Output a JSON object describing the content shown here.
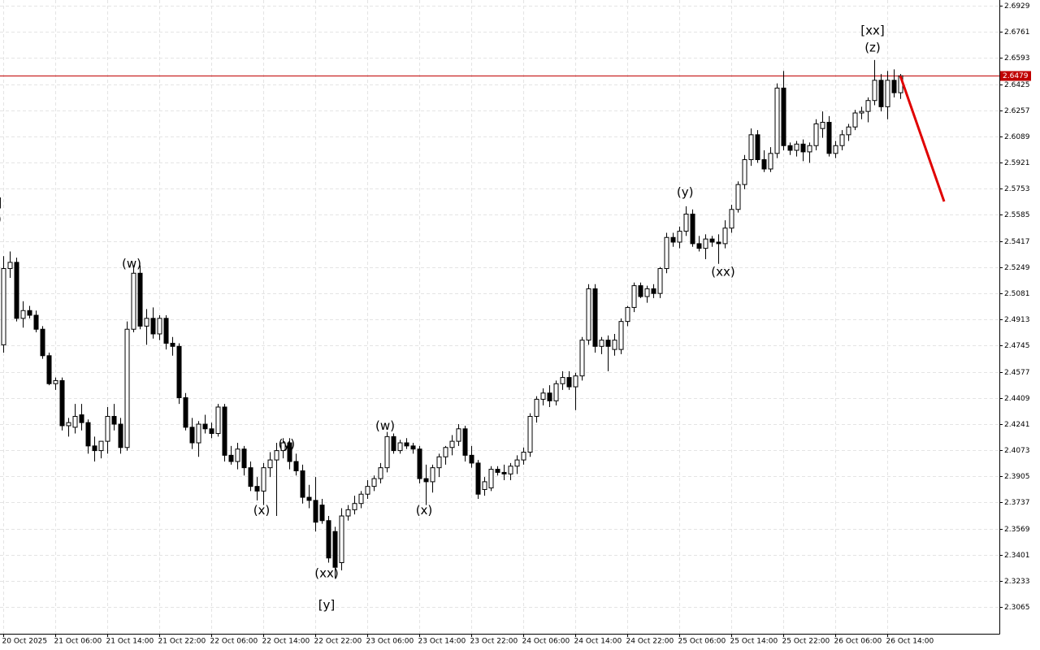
{
  "chart_data": {
    "type": "candlestick",
    "xlim": [
      -0.5,
      153.25
    ],
    "ylim": [
      2.2893,
      2.6966
    ],
    "yticks": [
      2.3065,
      2.3233,
      2.3401,
      2.3569,
      2.3737,
      2.3905,
      2.4073,
      2.4241,
      2.4409,
      2.4577,
      2.4745,
      2.4913,
      2.5081,
      2.5249,
      2.5417,
      2.5585,
      2.5753,
      2.5921,
      2.6089,
      2.6257,
      2.6425,
      2.6593,
      2.6761,
      2.6929
    ],
    "xticks": [
      {
        "value": 0,
        "label": "20 Oct 2025"
      },
      {
        "value": 8,
        "label": "21 Oct 06:00"
      },
      {
        "value": 16,
        "label": "21 Oct 14:00"
      },
      {
        "value": 24,
        "label": "21 Oct 22:00"
      },
      {
        "value": 32,
        "label": "22 Oct 06:00"
      },
      {
        "value": 40,
        "label": "22 Oct 14:00"
      },
      {
        "value": 48,
        "label": "22 Oct 22:00"
      },
      {
        "value": 56,
        "label": "23 Oct 06:00"
      },
      {
        "value": 64,
        "label": "23 Oct 14:00"
      },
      {
        "value": 72,
        "label": "23 Oct 22:00"
      },
      {
        "value": 80,
        "label": "24 Oct 06:00"
      },
      {
        "value": 88,
        "label": "24 Oct 14:00"
      },
      {
        "value": 96,
        "label": "24 Oct 22:00"
      },
      {
        "value": 104,
        "label": "25 Oct 06:00"
      },
      {
        "value": 112,
        "label": "25 Oct 14:00"
      },
      {
        "value": 120,
        "label": "25 Oct 22:00"
      },
      {
        "value": 128,
        "label": "26 Oct 06:00"
      },
      {
        "value": 136,
        "label": "26 Oct 14:00"
      }
    ],
    "grid": true,
    "up_color": "#ffffff",
    "down_color": "#000000",
    "current_price": 2.6479,
    "price_line_color": "#c00000",
    "forecast": {
      "color": "#e00000",
      "x": [
        138,
        144.75
      ],
      "y": [
        2.6479,
        2.5671
      ]
    },
    "annotations": [
      {
        "text": "[x]",
        "x": -1.5,
        "y": 2.5661,
        "color": "#33cc33"
      },
      {
        "text": "(z)",
        "x": -1.5,
        "y": 2.5557,
        "color": "#2222cc"
      },
      {
        "text": "(w)",
        "x": 19.75,
        "y": 2.527,
        "color": "#2222cc"
      },
      {
        "text": "(x)",
        "x": 39.75,
        "y": 2.3683,
        "color": "#2222cc"
      },
      {
        "text": "(y)",
        "x": 43.6,
        "y": 2.411,
        "color": "#2222cc"
      },
      {
        "text": "(xx)",
        "x": 49.75,
        "y": 2.328,
        "color": "#2222cc"
      },
      {
        "text": "[y]",
        "x": 49.75,
        "y": 2.3077,
        "color": "#33cc33"
      },
      {
        "text": "(w)",
        "x": 58.75,
        "y": 2.4226,
        "color": "#2222cc"
      },
      {
        "text": "(x)",
        "x": 64.75,
        "y": 2.3683,
        "color": "#2222cc"
      },
      {
        "text": "(y)",
        "x": 104.9,
        "y": 2.5729,
        "color": "#2222cc"
      },
      {
        "text": "(xx)",
        "x": 110.75,
        "y": 2.5217,
        "color": "#2222cc"
      },
      {
        "text": "(z)",
        "x": 133.75,
        "y": 2.6658,
        "color": "#2222cc"
      },
      {
        "text": "[xx]",
        "x": 133.75,
        "y": 2.6767,
        "color": "#33cc33"
      }
    ],
    "ohlc": [
      [
        2.475,
        2.532,
        2.47,
        2.524
      ],
      [
        2.524,
        2.535,
        2.518,
        2.528
      ],
      [
        2.528,
        2.531,
        2.49,
        2.492
      ],
      [
        2.492,
        2.503,
        2.486,
        2.497
      ],
      [
        2.497,
        2.5,
        2.492,
        2.494
      ],
      [
        2.494,
        2.497,
        2.483,
        2.485
      ],
      [
        2.485,
        2.487,
        2.466,
        2.468
      ],
      [
        2.468,
        2.47,
        2.449,
        2.45
      ],
      [
        2.45,
        2.454,
        2.446,
        2.452
      ],
      [
        2.452,
        2.454,
        2.42,
        2.423
      ],
      [
        2.423,
        2.428,
        2.416,
        2.425
      ],
      [
        2.422,
        2.437,
        2.418,
        2.429
      ],
      [
        2.43,
        2.437,
        2.42,
        2.425
      ],
      [
        2.425,
        2.427,
        2.405,
        2.41
      ],
      [
        2.41,
        2.416,
        2.4,
        2.407
      ],
      [
        2.407,
        2.413,
        2.402,
        2.413
      ],
      [
        2.413,
        2.435,
        2.405,
        2.429
      ],
      [
        2.429,
        2.437,
        2.42,
        2.424
      ],
      [
        2.424,
        2.428,
        2.405,
        2.409
      ],
      [
        2.409,
        2.49,
        2.407,
        2.485
      ],
      [
        2.485,
        2.526,
        2.483,
        2.521
      ],
      [
        2.521,
        2.526,
        2.485,
        2.487
      ],
      [
        2.487,
        2.498,
        2.475,
        2.492
      ],
      [
        2.492,
        2.499,
        2.479,
        2.482
      ],
      [
        2.482,
        2.494,
        2.478,
        2.492
      ],
      [
        2.492,
        2.494,
        2.472,
        2.476
      ],
      [
        2.476,
        2.48,
        2.468,
        2.474
      ],
      [
        2.474,
        2.476,
        2.437,
        2.441
      ],
      [
        2.441,
        2.444,
        2.42,
        2.422
      ],
      [
        2.422,
        2.428,
        2.408,
        2.412
      ],
      [
        2.412,
        2.426,
        2.403,
        2.424
      ],
      [
        2.424,
        2.43,
        2.418,
        2.421
      ],
      [
        2.421,
        2.425,
        2.415,
        2.418
      ],
      [
        2.418,
        2.437,
        2.416,
        2.435
      ],
      [
        2.435,
        2.437,
        2.4,
        2.404
      ],
      [
        2.404,
        2.41,
        2.398,
        2.4
      ],
      [
        2.4,
        2.412,
        2.395,
        2.408
      ],
      [
        2.408,
        2.41,
        2.391,
        2.396
      ],
      [
        2.396,
        2.4,
        2.381,
        2.384
      ],
      [
        2.384,
        2.39,
        2.375,
        2.381
      ],
      [
        2.381,
        2.399,
        2.372,
        2.396
      ],
      [
        2.396,
        2.406,
        2.39,
        2.401
      ],
      [
        2.401,
        2.412,
        2.365,
        2.407
      ],
      [
        2.407,
        2.415,
        2.402,
        2.412
      ],
      [
        2.412,
        2.415,
        2.395,
        2.4
      ],
      [
        2.4,
        2.405,
        2.391,
        2.394
      ],
      [
        2.394,
        2.398,
        2.373,
        2.377
      ],
      [
        2.377,
        2.385,
        2.37,
        2.375
      ],
      [
        2.375,
        2.39,
        2.355,
        2.361
      ],
      [
        2.372,
        2.376,
        2.36,
        2.362
      ],
      [
        2.362,
        2.365,
        2.335,
        2.338
      ],
      [
        2.355,
        2.358,
        2.325,
        2.332
      ],
      [
        2.335,
        2.37,
        2.33,
        2.365
      ],
      [
        2.365,
        2.372,
        2.362,
        2.369
      ],
      [
        2.369,
        2.378,
        2.366,
        2.373
      ],
      [
        2.373,
        2.381,
        2.37,
        2.379
      ],
      [
        2.379,
        2.388,
        2.376,
        2.384
      ],
      [
        2.384,
        2.391,
        2.381,
        2.389
      ],
      [
        2.389,
        2.399,
        2.386,
        2.396
      ],
      [
        2.396,
        2.419,
        2.393,
        2.416
      ],
      [
        2.416,
        2.418,
        2.405,
        2.407
      ],
      [
        2.407,
        2.414,
        2.405,
        2.412
      ],
      [
        2.412,
        2.415,
        2.408,
        2.41
      ],
      [
        2.41,
        2.412,
        2.405,
        2.408
      ],
      [
        2.408,
        2.41,
        2.386,
        2.389
      ],
      [
        2.389,
        2.398,
        2.372,
        2.387
      ],
      [
        2.387,
        2.398,
        2.38,
        2.396
      ],
      [
        2.396,
        2.405,
        2.39,
        2.403
      ],
      [
        2.403,
        2.41,
        2.398,
        2.409
      ],
      [
        2.409,
        2.417,
        2.404,
        2.413
      ],
      [
        2.413,
        2.424,
        2.41,
        2.421
      ],
      [
        2.421,
        2.423,
        2.4,
        2.404
      ],
      [
        2.404,
        2.41,
        2.396,
        2.399
      ],
      [
        2.399,
        2.401,
        2.376,
        2.379
      ],
      [
        2.382,
        2.39,
        2.378,
        2.387
      ],
      [
        2.383,
        2.397,
        2.381,
        2.395
      ],
      [
        2.395,
        2.397,
        2.391,
        2.393
      ],
      [
        2.393,
        2.398,
        2.388,
        2.392
      ],
      [
        2.392,
        2.399,
        2.388,
        2.397
      ],
      [
        2.397,
        2.404,
        2.392,
        2.401
      ],
      [
        2.401,
        2.409,
        2.398,
        2.406
      ],
      [
        2.406,
        2.431,
        2.403,
        2.429
      ],
      [
        2.429,
        2.442,
        2.425,
        2.44
      ],
      [
        2.44,
        2.447,
        2.436,
        2.444
      ],
      [
        2.444,
        2.449,
        2.435,
        2.439
      ],
      [
        2.439,
        2.452,
        2.436,
        2.45
      ],
      [
        2.45,
        2.458,
        2.446,
        2.454
      ],
      [
        2.454,
        2.458,
        2.446,
        2.448
      ],
      [
        2.448,
        2.457,
        2.433,
        2.455
      ],
      [
        2.455,
        2.48,
        2.452,
        2.478
      ],
      [
        2.478,
        2.514,
        2.475,
        2.511
      ],
      [
        2.511,
        2.514,
        2.47,
        2.474
      ],
      [
        2.474,
        2.48,
        2.469,
        2.478
      ],
      [
        2.478,
        2.481,
        2.458,
        2.474
      ],
      [
        2.472,
        2.482,
        2.468,
        2.478
      ],
      [
        2.472,
        2.492,
        2.469,
        2.49
      ],
      [
        2.49,
        2.5,
        2.487,
        2.499
      ],
      [
        2.499,
        2.515,
        2.496,
        2.513
      ],
      [
        2.513,
        2.515,
        2.505,
        2.506
      ],
      [
        2.506,
        2.513,
        2.502,
        2.511
      ],
      [
        2.511,
        2.514,
        2.505,
        2.508
      ],
      [
        2.508,
        2.525,
        2.505,
        2.524
      ],
      [
        2.524,
        2.547,
        2.521,
        2.544
      ],
      [
        2.544,
        2.547,
        2.538,
        2.541
      ],
      [
        2.541,
        2.551,
        2.537,
        2.548
      ],
      [
        2.548,
        2.564,
        2.545,
        2.559
      ],
      [
        2.559,
        2.562,
        2.538,
        2.54
      ],
      [
        2.54,
        2.545,
        2.535,
        2.537
      ],
      [
        2.537,
        2.546,
        2.53,
        2.543
      ],
      [
        2.543,
        2.545,
        2.538,
        2.541
      ],
      [
        2.541,
        2.546,
        2.527,
        2.54
      ],
      [
        2.54,
        2.555,
        2.537,
        2.55
      ],
      [
        2.55,
        2.565,
        2.547,
        2.562
      ],
      [
        2.562,
        2.58,
        2.56,
        2.578
      ],
      [
        2.578,
        2.597,
        2.575,
        2.594
      ],
      [
        2.594,
        2.614,
        2.59,
        2.61
      ],
      [
        2.61,
        2.613,
        2.592,
        2.594
      ],
      [
        2.594,
        2.6,
        2.586,
        2.588
      ],
      [
        2.588,
        2.602,
        2.586,
        2.598
      ],
      [
        2.598,
        2.643,
        2.595,
        2.64
      ],
      [
        2.64,
        2.651,
        2.6,
        2.603
      ],
      [
        2.603,
        2.605,
        2.597,
        2.6
      ],
      [
        2.6,
        2.606,
        2.596,
        2.604
      ],
      [
        2.604,
        2.607,
        2.593,
        2.599
      ],
      [
        2.599,
        2.605,
        2.592,
        2.603
      ],
      [
        2.603,
        2.62,
        2.6,
        2.617
      ],
      [
        2.614,
        2.625,
        2.608,
        2.618
      ],
      [
        2.618,
        2.622,
        2.596,
        2.598
      ],
      [
        2.598,
        2.606,
        2.595,
        2.603
      ],
      [
        2.603,
        2.613,
        2.6,
        2.61
      ],
      [
        2.61,
        2.617,
        2.606,
        2.615
      ],
      [
        2.615,
        2.626,
        2.613,
        2.624
      ],
      [
        2.624,
        2.628,
        2.62,
        2.625
      ],
      [
        2.625,
        2.634,
        2.618,
        2.632
      ],
      [
        2.632,
        2.658,
        2.629,
        2.645
      ],
      [
        2.645,
        2.649,
        2.625,
        2.628
      ],
      [
        2.628,
        2.651,
        2.62,
        2.645
      ],
      [
        2.645,
        2.652,
        2.634,
        2.637
      ],
      [
        2.637,
        2.649,
        2.633,
        2.6479
      ]
    ]
  }
}
